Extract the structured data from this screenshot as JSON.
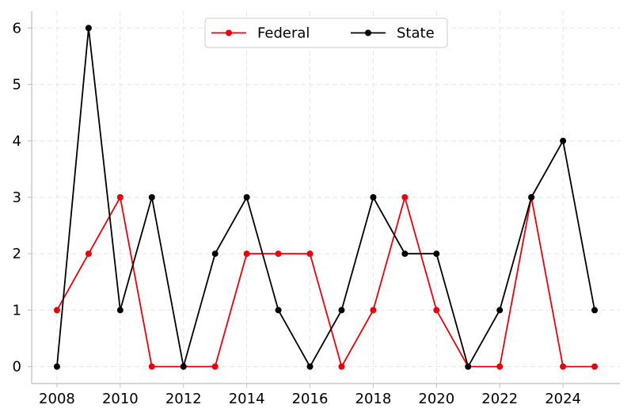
{
  "chart_data": {
    "type": "line",
    "x": [
      2008,
      2009,
      2010,
      2011,
      2012,
      2013,
      2014,
      2015,
      2016,
      2017,
      2018,
      2019,
      2020,
      2021,
      2022,
      2023,
      2024,
      2025
    ],
    "series": [
      {
        "name": "Federal",
        "color": "#e8000b",
        "values": [
          1,
          2,
          3,
          0,
          0,
          0,
          2,
          2,
          2,
          0,
          1,
          3,
          1,
          0,
          0,
          3,
          0,
          0
        ]
      },
      {
        "name": "State",
        "color": "#000000",
        "values": [
          0,
          6,
          1,
          3,
          0,
          2,
          3,
          1,
          0,
          1,
          3,
          2,
          2,
          0,
          1,
          3,
          4,
          1
        ]
      }
    ],
    "title": "",
    "xlabel": "",
    "ylabel": "",
    "xticks": [
      "2008",
      "2010",
      "2012",
      "2014",
      "2016",
      "2018",
      "2020",
      "2022",
      "2024"
    ],
    "yticks": [
      "0",
      "1",
      "2",
      "3",
      "4",
      "5",
      "6"
    ],
    "xlim": [
      2007.2,
      2025.8
    ],
    "ylim": [
      -0.3,
      6.3
    ],
    "grid": true,
    "legend_position": "top-center"
  }
}
